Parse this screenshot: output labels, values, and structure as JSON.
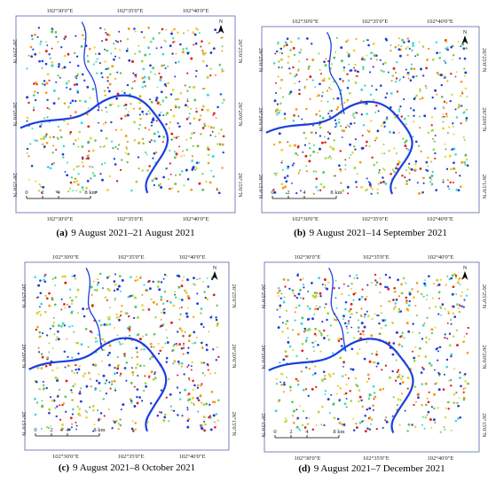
{
  "map_labels": {
    "lon": [
      "102°30'0\"E",
      "102°35'0\"E",
      "102°40'0\"E"
    ],
    "lat": [
      "26°25'0\"N",
      "26°20'0\"N",
      "26°15'0\"N"
    ],
    "north": "N",
    "scale": [
      "0",
      "2",
      "4",
      "8 km"
    ]
  },
  "panels": [
    {
      "label": "(a)",
      "caption": "9 August 2021–21 August 2021"
    },
    {
      "label": "(b)",
      "caption": "9 August 2021–14 September 2021"
    },
    {
      "label": "(c)",
      "caption": "9 August 2021–8 October 2021"
    },
    {
      "label": "(d)",
      "caption": "9 August 2021–7 December 2021"
    }
  ]
}
